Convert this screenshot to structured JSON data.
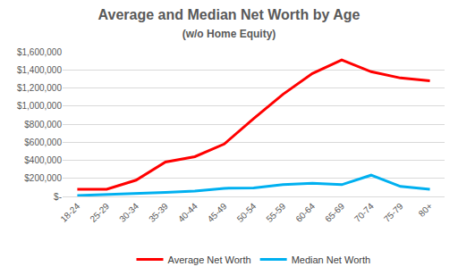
{
  "chart_data": {
    "type": "line",
    "title": "Average and Median Net Worth by Age",
    "subtitle": "(w/o Home Equity)",
    "categories": [
      "18-24",
      "25-29",
      "30-34",
      "35-39",
      "40-44",
      "45-49",
      "50-54",
      "55-59",
      "60-64",
      "65-69",
      "70-74",
      "75-79",
      "80+"
    ],
    "series": [
      {
        "name": "Average Net Worth",
        "color": "#ff0000",
        "values": [
          80000,
          80000,
          180000,
          380000,
          440000,
          580000,
          860000,
          1130000,
          1360000,
          1510000,
          1380000,
          1310000,
          1280000
        ]
      },
      {
        "name": "Median Net Worth",
        "color": "#00b0f0",
        "values": [
          10000,
          20000,
          35000,
          45000,
          60000,
          90000,
          95000,
          130000,
          145000,
          130000,
          235000,
          110000,
          80000
        ]
      }
    ],
    "ylim": [
      0,
      1600000
    ],
    "yticks": [
      {
        "value": 0,
        "label": "$-"
      },
      {
        "value": 200000,
        "label": "$200,000"
      },
      {
        "value": 400000,
        "label": "$400,000"
      },
      {
        "value": 600000,
        "label": "$600,000"
      },
      {
        "value": 800000,
        "label": "$800,000"
      },
      {
        "value": 1000000,
        "label": "$1,000,000"
      },
      {
        "value": 1200000,
        "label": "$1,200,000"
      },
      {
        "value": 1400000,
        "label": "$1,400,000"
      },
      {
        "value": 1600000,
        "label": "$1,600,000"
      }
    ],
    "grid": true,
    "legend": "bottom"
  }
}
